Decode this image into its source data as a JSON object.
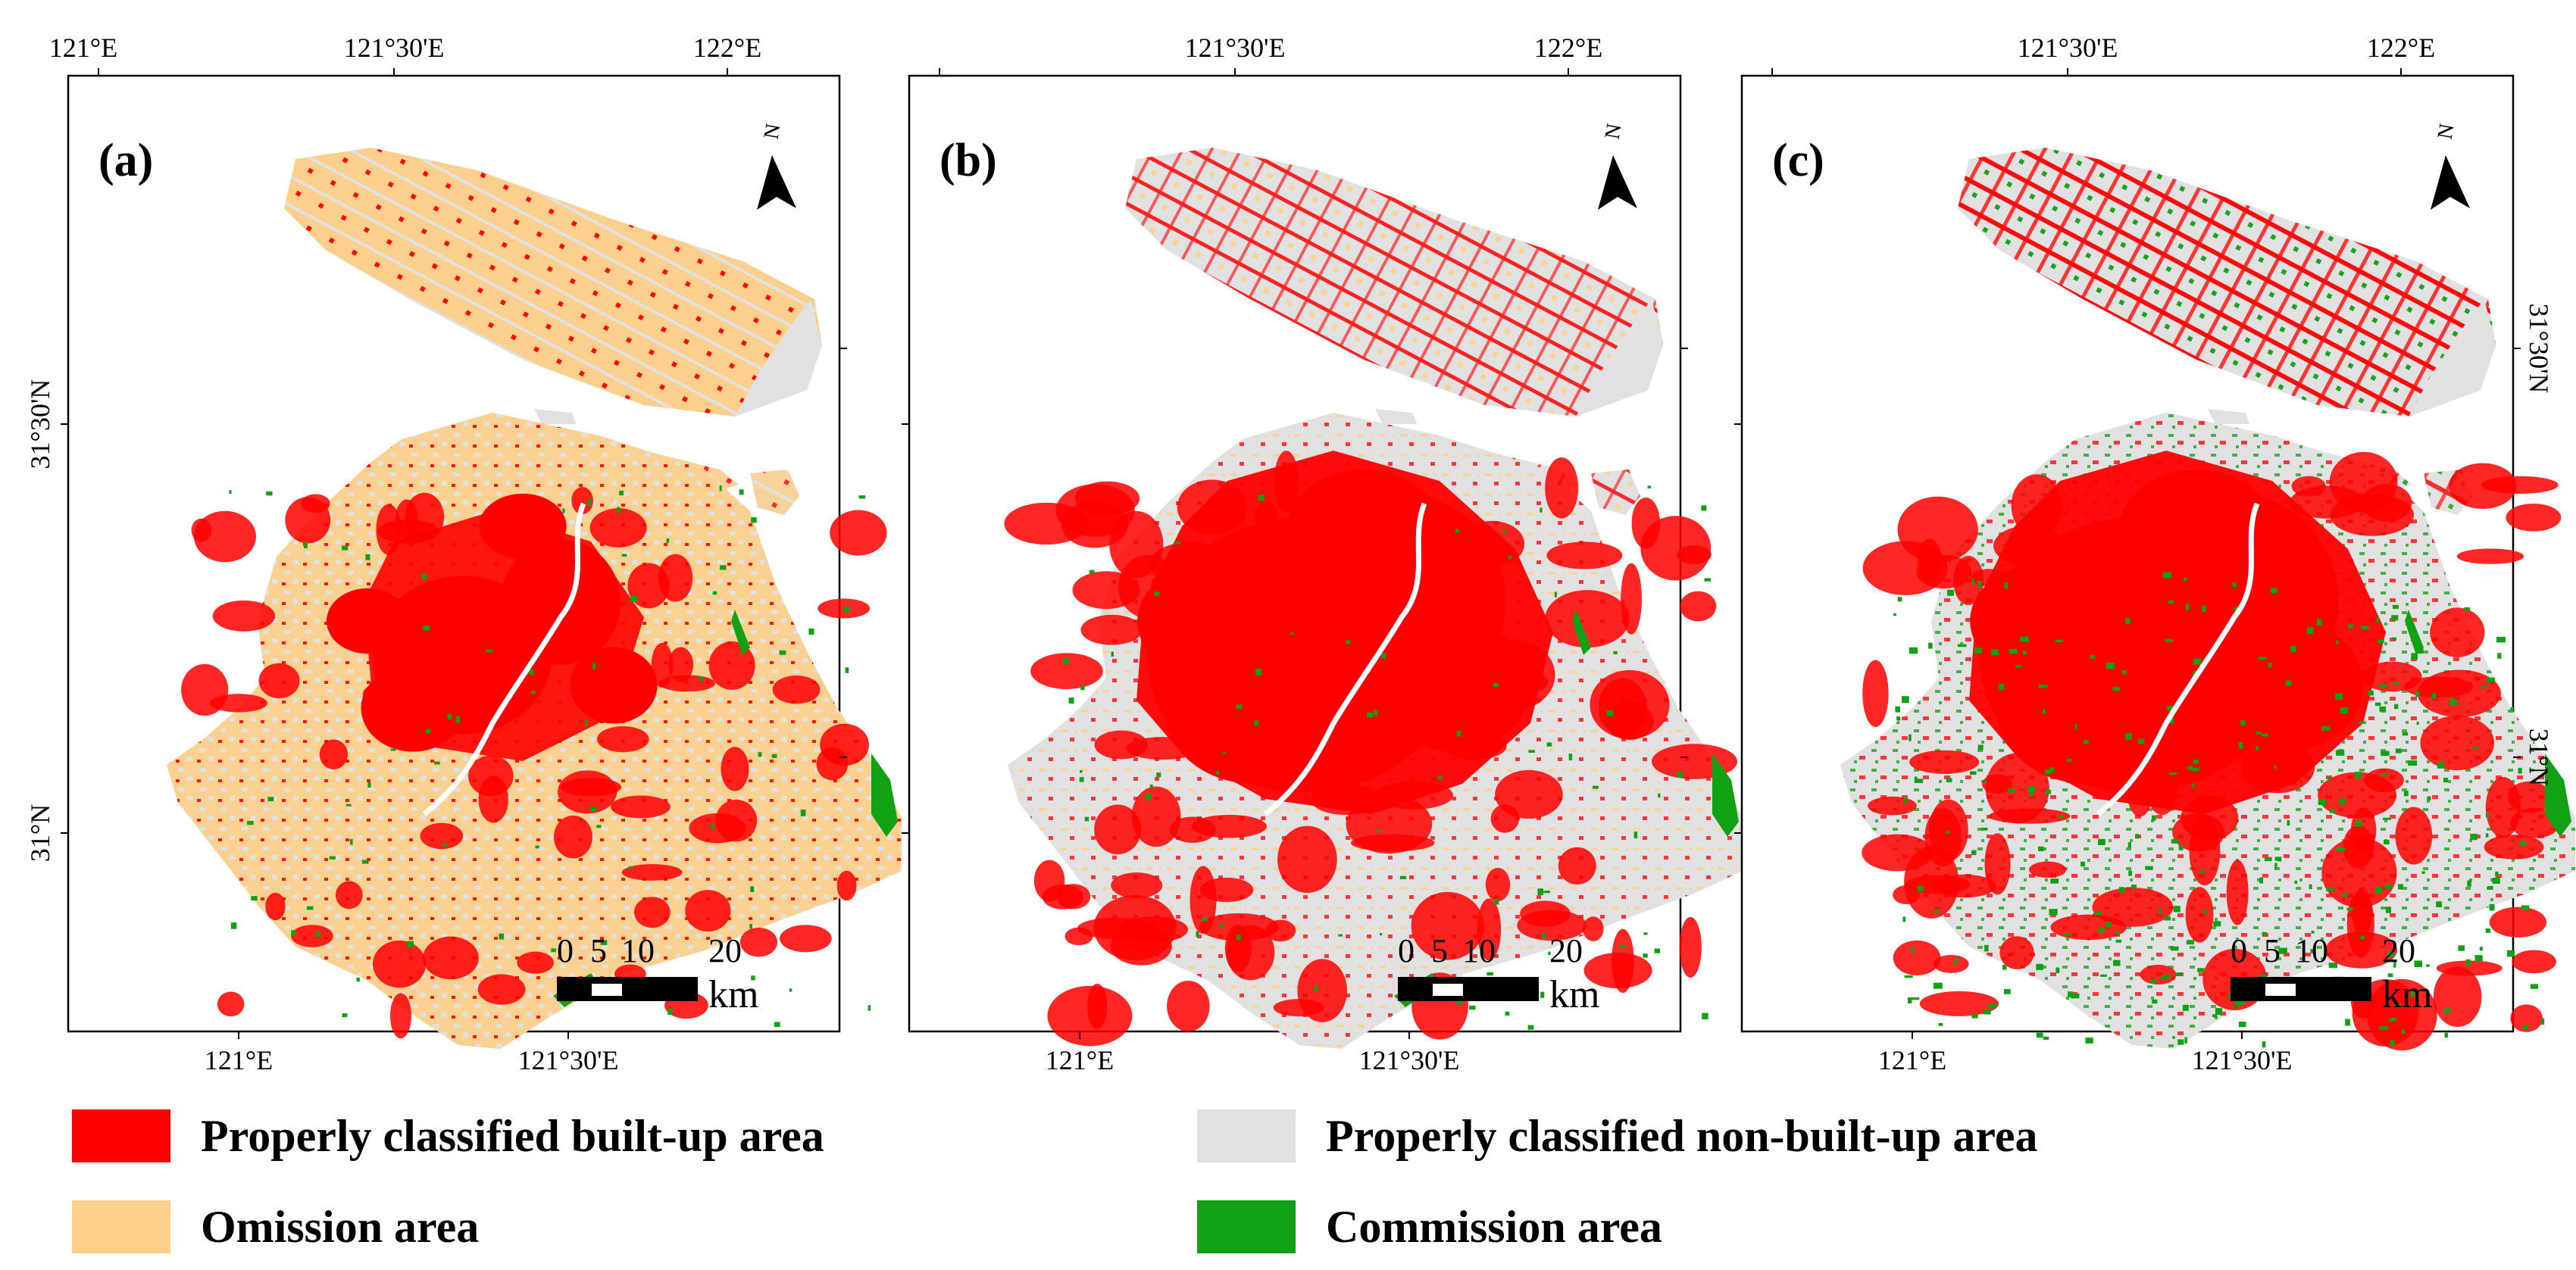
{
  "figure": {
    "panels": [
      {
        "label": "(a)",
        "scheme": "a"
      },
      {
        "label": "(b)",
        "scheme": "b"
      },
      {
        "label": "(c)",
        "scheme": "c"
      }
    ],
    "axis_labels": {
      "top": [
        "121°E",
        "121°30'E",
        "122°E"
      ],
      "bottom": [
        "121°E",
        "121°30'E"
      ],
      "left": [
        "31°30'N",
        "31°N"
      ],
      "right": [
        "31°30'N",
        "31°N"
      ]
    },
    "north_letter": "N",
    "scale_bar": {
      "labels": [
        "0",
        "5",
        "10",
        "20"
      ],
      "unit": "km"
    }
  },
  "legend": {
    "items": [
      {
        "label": "Properly classified built-up area",
        "color": "#ff0000"
      },
      {
        "label": "Properly classified non-built-up area",
        "color": "#e1e1e1"
      },
      {
        "label": "Omission area",
        "color": "#fdcf88"
      },
      {
        "label": "Commission area",
        "color": "#12a014"
      }
    ]
  },
  "colors": {
    "built_up": "#ff0000",
    "non_built_up": "#e1e1e1",
    "omission": "#fdcf88",
    "commission": "#12a014"
  }
}
